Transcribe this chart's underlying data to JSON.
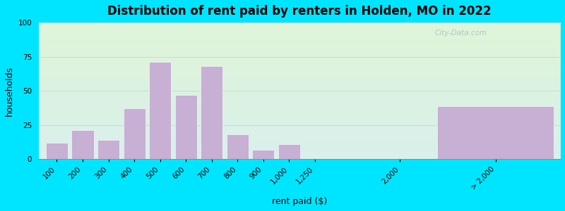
{
  "title": "Distribution of rent paid by renters in Holden, MO in 2022",
  "xlabel": "rent paid ($)",
  "ylabel": "households",
  "bar_color": "#c8afd4",
  "background_outer": "#00e5ff",
  "ylim": [
    0,
    100
  ],
  "yticks": [
    0,
    25,
    50,
    75,
    100
  ],
  "bar_labels": [
    "100",
    "200",
    "300",
    "400",
    "500",
    "600",
    "700",
    "800",
    "900",
    "1,000",
    "1,250"
  ],
  "bar_values": [
    12,
    21,
    14,
    37,
    71,
    47,
    68,
    18,
    7,
    11,
    0
  ],
  "tick_2000_label": "2,000",
  "tick_gt2000_label": "> 2,000",
  "gt2000_value": 39,
  "watermark": "City-Data.com",
  "grid_color": "#e0e0e0",
  "title_fontsize": 12,
  "axis_fontsize": 9,
  "tick_fontsize": 7.5
}
